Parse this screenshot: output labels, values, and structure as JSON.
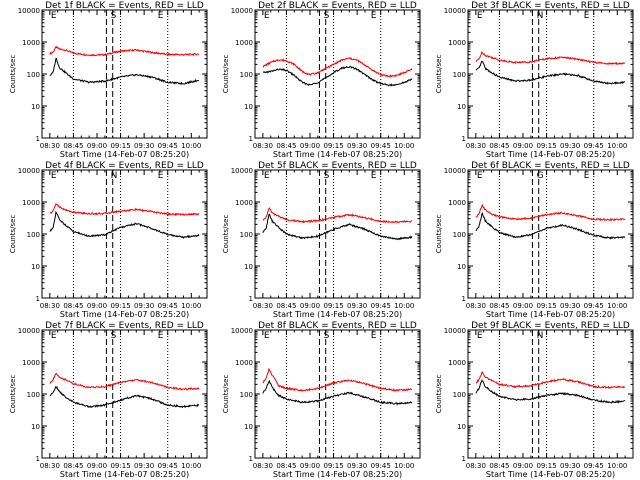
{
  "colors": {
    "events": "#000000",
    "lld": "#ff0000",
    "axis": "#000000",
    "background": "#ffffff"
  },
  "chart_data": [
    {
      "type": "line",
      "title": "Det 1f BLACK = Events, RED = LLD",
      "xlabel": "Start Time (14-Feb-07 08:25:20)",
      "ylabel": "Counts/sec",
      "x_ticks": [
        "08:30",
        "08:45",
        "09:00",
        "09:15",
        "09:30",
        "09:45",
        "10:00"
      ],
      "y_ticks": [
        "1",
        "10",
        "100",
        "1000",
        "10000"
      ],
      "yscale": "log",
      "ylim": [
        1,
        10000
      ],
      "xlim_minutes": [
        -5,
        100
      ],
      "markers": [
        {
          "label": "E",
          "x": 0
        },
        {
          "label": "S",
          "x": 38
        },
        {
          "label": "E",
          "x": 68
        }
      ],
      "dashed_x": [
        36,
        40
      ],
      "dotted_x": [
        15,
        45,
        75
      ],
      "series": [
        {
          "id": "events",
          "x": [
            0,
            2,
            4,
            6,
            10,
            15,
            25,
            35,
            45,
            55,
            65,
            75,
            85,
            95
          ],
          "values": [
            90,
            110,
            320,
            160,
            110,
            70,
            55,
            60,
            80,
            95,
            80,
            55,
            50,
            65
          ]
        },
        {
          "id": "lld",
          "x": [
            0,
            2,
            4,
            6,
            10,
            15,
            25,
            35,
            45,
            55,
            65,
            75,
            85,
            95
          ],
          "values": [
            430,
            480,
            700,
            600,
            560,
            450,
            390,
            400,
            520,
            560,
            470,
            410,
            400,
            420
          ]
        }
      ]
    },
    {
      "type": "line",
      "title": "Det 2f BLACK = Events, RED = LLD",
      "xlabel": "Start Time (14-Feb-07 08:25:20)",
      "ylabel": "Counts/sec",
      "x_ticks": [
        "08:30",
        "08:45",
        "09:00",
        "09:15",
        "09:30",
        "09:45",
        "10:00"
      ],
      "y_ticks": [
        "1",
        "10",
        "100",
        "1000",
        "10000"
      ],
      "yscale": "log",
      "ylim": [
        1,
        10000
      ],
      "xlim_minutes": [
        -5,
        100
      ],
      "markers": [
        {
          "label": "E",
          "x": 0
        },
        {
          "label": "S",
          "x": 38
        },
        {
          "label": "E",
          "x": 68
        }
      ],
      "dashed_x": [
        36,
        40
      ],
      "dotted_x": [
        15,
        45,
        75
      ],
      "series": [
        {
          "id": "events",
          "x": [
            0,
            5,
            10,
            15,
            20,
            25,
            30,
            35,
            40,
            45,
            50,
            55,
            60,
            65,
            70,
            75,
            80,
            85,
            90,
            95
          ],
          "values": [
            110,
            120,
            140,
            130,
            90,
            55,
            45,
            55,
            75,
            110,
            150,
            170,
            140,
            95,
            65,
            50,
            45,
            45,
            55,
            70
          ]
        },
        {
          "id": "lld",
          "x": [
            0,
            5,
            10,
            15,
            20,
            25,
            30,
            35,
            40,
            45,
            50,
            55,
            60,
            65,
            70,
            75,
            80,
            85,
            90,
            95
          ],
          "values": [
            170,
            230,
            280,
            260,
            200,
            120,
            95,
            110,
            150,
            200,
            270,
            310,
            270,
            190,
            130,
            95,
            85,
            90,
            110,
            140
          ]
        }
      ]
    },
    {
      "type": "line",
      "title": "Det 3f BLACK = Events, RED = LLD",
      "xlabel": "Start Time (14-Feb-07 08:25:20)",
      "ylabel": "Counts/sec",
      "x_ticks": [
        "08:30",
        "08:45",
        "09:00",
        "09:15",
        "09:30",
        "09:45",
        "10:00"
      ],
      "y_ticks": [
        "1",
        "10",
        "100",
        "1000",
        "10000"
      ],
      "yscale": "log",
      "ylim": [
        1,
        10000
      ],
      "xlim_minutes": [
        -5,
        100
      ],
      "markers": [
        {
          "label": "E",
          "x": 0
        },
        {
          "label": "N",
          "x": 38
        },
        {
          "label": "E",
          "x": 68
        }
      ],
      "dashed_x": [
        36,
        40
      ],
      "dotted_x": [
        15,
        45,
        75
      ],
      "series": [
        {
          "id": "events",
          "x": [
            0,
            2,
            4,
            6,
            10,
            15,
            25,
            35,
            45,
            55,
            65,
            75,
            85,
            95
          ],
          "values": [
            130,
            150,
            260,
            150,
            110,
            80,
            60,
            65,
            85,
            100,
            90,
            60,
            50,
            55
          ]
        },
        {
          "id": "lld",
          "x": [
            0,
            2,
            4,
            6,
            10,
            15,
            25,
            35,
            45,
            55,
            65,
            75,
            85,
            95
          ],
          "values": [
            240,
            300,
            480,
            380,
            330,
            270,
            230,
            240,
            300,
            330,
            290,
            230,
            210,
            215
          ]
        }
      ]
    },
    {
      "type": "line",
      "title": "Det 4f BLACK = Events, RED = LLD",
      "xlabel": "Start Time (14-Feb-07 08:25:20)",
      "ylabel": "Counts/sec",
      "x_ticks": [
        "08:30",
        "08:45",
        "09:00",
        "09:15",
        "09:30",
        "09:45",
        "10:00"
      ],
      "y_ticks": [
        "1",
        "10",
        "100",
        "1000",
        "10000"
      ],
      "yscale": "log",
      "ylim": [
        1,
        10000
      ],
      "xlim_minutes": [
        -5,
        100
      ],
      "markers": [
        {
          "label": "E",
          "x": 0
        },
        {
          "label": "N",
          "x": 38
        },
        {
          "label": "E",
          "x": 68
        }
      ],
      "dashed_x": [
        36,
        40
      ],
      "dotted_x": [
        15,
        45,
        75
      ],
      "series": [
        {
          "id": "events",
          "x": [
            0,
            2,
            4,
            6,
            10,
            15,
            25,
            35,
            45,
            55,
            65,
            75,
            85,
            95
          ],
          "values": [
            120,
            160,
            500,
            280,
            190,
            120,
            85,
            95,
            160,
            210,
            150,
            95,
            80,
            90
          ]
        },
        {
          "id": "lld",
          "x": [
            0,
            2,
            4,
            6,
            10,
            15,
            25,
            35,
            45,
            55,
            65,
            75,
            85,
            95
          ],
          "values": [
            430,
            520,
            900,
            700,
            560,
            480,
            430,
            440,
            520,
            580,
            500,
            420,
            410,
            420
          ]
        }
      ]
    },
    {
      "type": "line",
      "title": "Det 5f BLACK = Events, RED = LLD",
      "xlabel": "Start Time (14-Feb-07 08:25:20)",
      "ylabel": "Counts/sec",
      "x_ticks": [
        "08:30",
        "08:45",
        "09:00",
        "09:15",
        "09:30",
        "09:45",
        "10:00"
      ],
      "y_ticks": [
        "1",
        "10",
        "100",
        "1000",
        "10000"
      ],
      "yscale": "log",
      "ylim": [
        1,
        10000
      ],
      "xlim_minutes": [
        -5,
        100
      ],
      "markers": [
        {
          "label": "E",
          "x": 0
        },
        {
          "label": "S",
          "x": 38
        },
        {
          "label": "E",
          "x": 68
        }
      ],
      "dashed_x": [
        36,
        40
      ],
      "dotted_x": [
        15,
        45,
        75
      ],
      "series": [
        {
          "id": "events",
          "x": [
            0,
            2,
            4,
            6,
            10,
            15,
            25,
            35,
            45,
            55,
            65,
            75,
            85,
            95
          ],
          "values": [
            110,
            150,
            420,
            250,
            160,
            100,
            75,
            85,
            140,
            200,
            140,
            85,
            70,
            80
          ]
        },
        {
          "id": "lld",
          "x": [
            0,
            2,
            4,
            6,
            10,
            15,
            25,
            35,
            45,
            55,
            65,
            75,
            85,
            95
          ],
          "values": [
            260,
            330,
            650,
            450,
            360,
            280,
            240,
            260,
            330,
            400,
            320,
            250,
            240,
            250
          ]
        }
      ]
    },
    {
      "type": "line",
      "title": "Det 6f BLACK = Events, RED = LLD",
      "xlabel": "Start Time (14-Feb-07 08:25:20)",
      "ylabel": "Counts/sec",
      "x_ticks": [
        "08:30",
        "08:45",
        "09:00",
        "09:15",
        "09:30",
        "09:45",
        "10:00"
      ],
      "y_ticks": [
        "1",
        "10",
        "100",
        "1000",
        "10000"
      ],
      "yscale": "log",
      "ylim": [
        1,
        10000
      ],
      "xlim_minutes": [
        -5,
        100
      ],
      "markers": [
        {
          "label": "E",
          "x": 0
        },
        {
          "label": "G",
          "x": 38
        },
        {
          "label": "E",
          "x": 68
        }
      ],
      "dashed_x": [
        36,
        40
      ],
      "dotted_x": [
        15,
        45,
        75
      ],
      "series": [
        {
          "id": "events",
          "x": [
            0,
            2,
            4,
            6,
            10,
            15,
            25,
            35,
            45,
            55,
            65,
            75,
            85,
            95
          ],
          "values": [
            130,
            170,
            450,
            260,
            170,
            110,
            80,
            95,
            150,
            190,
            140,
            90,
            75,
            80
          ]
        },
        {
          "id": "lld",
          "x": [
            0,
            2,
            4,
            6,
            10,
            15,
            25,
            35,
            45,
            55,
            65,
            75,
            85,
            95
          ],
          "values": [
            330,
            420,
            800,
            560,
            420,
            340,
            290,
            310,
            400,
            460,
            370,
            290,
            280,
            290
          ]
        }
      ]
    },
    {
      "type": "line",
      "title": "Det 7f BLACK = Events, RED = LLD",
      "xlabel": "Start Time (14-Feb-07 08:25:20)",
      "ylabel": "Counts/sec",
      "x_ticks": [
        "08:30",
        "08:45",
        "09:00",
        "09:15",
        "09:30",
        "09:45",
        "10:00"
      ],
      "y_ticks": [
        "1",
        "10",
        "100",
        "1000",
        "10000"
      ],
      "yscale": "log",
      "ylim": [
        1,
        10000
      ],
      "xlim_minutes": [
        -5,
        100
      ],
      "markers": [
        {
          "label": "E",
          "x": 0
        },
        {
          "label": "S",
          "x": 38
        },
        {
          "label": "E",
          "x": 68
        }
      ],
      "dashed_x": [
        36,
        40
      ],
      "dotted_x": [
        15,
        45,
        75
      ],
      "series": [
        {
          "id": "events",
          "x": [
            0,
            2,
            4,
            6,
            10,
            15,
            25,
            35,
            45,
            55,
            65,
            75,
            85,
            95
          ],
          "values": [
            90,
            110,
            170,
            120,
            80,
            55,
            40,
            45,
            65,
            90,
            70,
            45,
            40,
            45
          ]
        },
        {
          "id": "lld",
          "x": [
            0,
            2,
            4,
            6,
            10,
            15,
            25,
            35,
            45,
            55,
            65,
            75,
            85,
            95
          ],
          "values": [
            210,
            280,
            440,
            340,
            280,
            210,
            160,
            170,
            230,
            280,
            230,
            160,
            140,
            150
          ]
        }
      ]
    },
    {
      "type": "line",
      "title": "Det 8f BLACK = Events, RED = LLD",
      "xlabel": "Start Time (14-Feb-07 08:25:20)",
      "ylabel": "Counts/sec",
      "x_ticks": [
        "08:30",
        "08:45",
        "09:00",
        "09:15",
        "09:30",
        "09:45",
        "10:00"
      ],
      "y_ticks": [
        "1",
        "10",
        "100",
        "1000",
        "10000"
      ],
      "yscale": "log",
      "ylim": [
        1,
        10000
      ],
      "xlim_minutes": [
        -5,
        100
      ],
      "markers": [
        {
          "label": "E",
          "x": 0
        },
        {
          "label": "S",
          "x": 38
        },
        {
          "label": "E",
          "x": 68
        }
      ],
      "dashed_x": [
        36,
        40
      ],
      "dotted_x": [
        15,
        45,
        75
      ],
      "series": [
        {
          "id": "events",
          "x": [
            0,
            2,
            4,
            6,
            8,
            10,
            15,
            25,
            35,
            45,
            55,
            65,
            75,
            85,
            95
          ],
          "values": [
            110,
            150,
            260,
            160,
            120,
            90,
            70,
            55,
            60,
            85,
            110,
            80,
            55,
            50,
            55
          ]
        },
        {
          "id": "lld",
          "x": [
            0,
            2,
            4,
            6,
            8,
            10,
            15,
            25,
            35,
            45,
            55,
            65,
            75,
            85,
            95
          ],
          "values": [
            230,
            300,
            600,
            380,
            280,
            180,
            150,
            130,
            150,
            220,
            270,
            210,
            150,
            130,
            140
          ]
        }
      ]
    },
    {
      "type": "line",
      "title": "Det 9f BLACK = Events, RED = LLD",
      "xlabel": "Start Time (14-Feb-07 08:25:20)",
      "ylabel": "Counts/sec",
      "x_ticks": [
        "08:30",
        "08:45",
        "09:00",
        "09:15",
        "09:30",
        "09:45",
        "10:00"
      ],
      "y_ticks": [
        "1",
        "10",
        "100",
        "1000",
        "10000"
      ],
      "yscale": "log",
      "ylim": [
        1,
        10000
      ],
      "xlim_minutes": [
        -5,
        100
      ],
      "markers": [
        {
          "label": "E",
          "x": 0
        },
        {
          "label": "N",
          "x": 38
        },
        {
          "label": "E",
          "x": 68
        }
      ],
      "dashed_x": [
        36,
        40
      ],
      "dotted_x": [
        15,
        45,
        75
      ],
      "series": [
        {
          "id": "events",
          "x": [
            0,
            2,
            4,
            6,
            10,
            15,
            25,
            35,
            45,
            55,
            65,
            75,
            85,
            95
          ],
          "values": [
            110,
            150,
            280,
            170,
            120,
            85,
            65,
            70,
            90,
            105,
            90,
            65,
            55,
            60
          ]
        },
        {
          "id": "lld",
          "x": [
            0,
            2,
            4,
            6,
            10,
            15,
            25,
            35,
            45,
            55,
            65,
            75,
            85,
            95
          ],
          "values": [
            220,
            280,
            480,
            330,
            270,
            200,
            170,
            180,
            240,
            290,
            240,
            170,
            160,
            165
          ]
        }
      ]
    }
  ]
}
